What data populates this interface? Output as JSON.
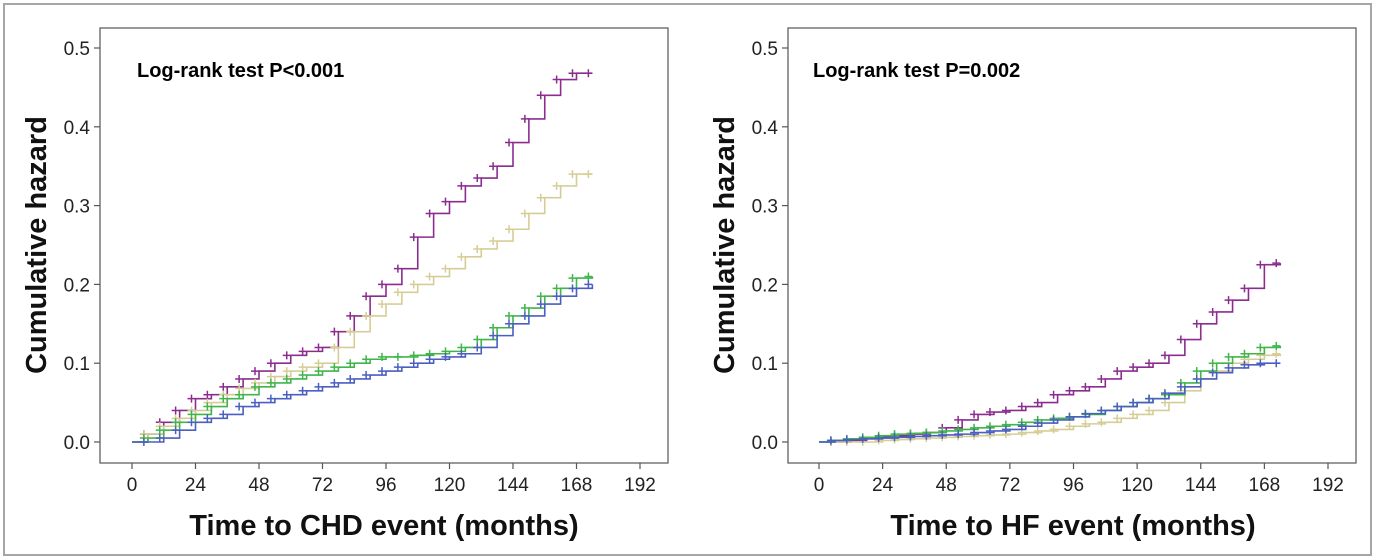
{
  "colors": {
    "purple": "#8b2d8f",
    "tan": "#d6cd96",
    "green": "#3fb54a",
    "blue": "#4a5fc1"
  },
  "chart_data": [
    {
      "type": "line",
      "xlabel": "Time to CHD event (months)",
      "ylabel": "Cumulative hazard",
      "annotation": "Log-rank test P<0.001",
      "xlim": [
        0,
        192
      ],
      "ylim": [
        0,
        0.5
      ],
      "xticks": [
        "0",
        "24",
        "48",
        "72",
        "96",
        "120",
        "144",
        "168",
        "192"
      ],
      "yticks": [
        "0.0",
        "0.1",
        "0.2",
        "0.3",
        "0.4",
        "0.5"
      ],
      "grid": false,
      "series": [
        {
          "color": "purple",
          "x": [
            0,
            6,
            12,
            18,
            24,
            30,
            36,
            42,
            48,
            54,
            60,
            66,
            72,
            78,
            84,
            90,
            96,
            102,
            108,
            114,
            120,
            126,
            132,
            138,
            144,
            150,
            156,
            162,
            168,
            174
          ],
          "y": [
            0,
            0.01,
            0.025,
            0.04,
            0.055,
            0.06,
            0.07,
            0.08,
            0.09,
            0.1,
            0.11,
            0.115,
            0.12,
            0.14,
            0.16,
            0.185,
            0.2,
            0.22,
            0.26,
            0.29,
            0.305,
            0.325,
            0.335,
            0.35,
            0.38,
            0.41,
            0.44,
            0.46,
            0.468,
            0.468
          ]
        },
        {
          "color": "tan",
          "x": [
            0,
            6,
            12,
            18,
            24,
            30,
            36,
            42,
            48,
            54,
            60,
            66,
            72,
            78,
            84,
            90,
            96,
            102,
            108,
            114,
            120,
            126,
            132,
            138,
            144,
            150,
            156,
            162,
            168,
            174
          ],
          "y": [
            0,
            0.01,
            0.02,
            0.03,
            0.04,
            0.05,
            0.06,
            0.068,
            0.075,
            0.083,
            0.09,
            0.095,
            0.1,
            0.12,
            0.14,
            0.16,
            0.175,
            0.19,
            0.2,
            0.21,
            0.22,
            0.235,
            0.245,
            0.255,
            0.27,
            0.29,
            0.31,
            0.325,
            0.34,
            0.34
          ]
        },
        {
          "color": "green",
          "x": [
            0,
            6,
            12,
            18,
            24,
            30,
            36,
            42,
            48,
            54,
            60,
            66,
            72,
            78,
            84,
            90,
            96,
            102,
            108,
            114,
            120,
            126,
            132,
            138,
            144,
            150,
            156,
            162,
            168,
            174
          ],
          "y": [
            0,
            0.005,
            0.015,
            0.025,
            0.035,
            0.045,
            0.055,
            0.06,
            0.07,
            0.075,
            0.08,
            0.085,
            0.09,
            0.095,
            0.1,
            0.105,
            0.108,
            0.108,
            0.11,
            0.112,
            0.115,
            0.12,
            0.13,
            0.145,
            0.16,
            0.17,
            0.185,
            0.195,
            0.208,
            0.21
          ]
        },
        {
          "color": "blue",
          "x": [
            0,
            6,
            12,
            18,
            24,
            30,
            36,
            42,
            48,
            54,
            60,
            66,
            72,
            78,
            84,
            90,
            96,
            102,
            108,
            114,
            120,
            126,
            132,
            138,
            144,
            150,
            156,
            162,
            168,
            174
          ],
          "y": [
            0,
            0,
            0.005,
            0.015,
            0.025,
            0.03,
            0.035,
            0.045,
            0.05,
            0.055,
            0.06,
            0.065,
            0.07,
            0.075,
            0.08,
            0.085,
            0.09,
            0.095,
            0.1,
            0.105,
            0.108,
            0.112,
            0.12,
            0.135,
            0.15,
            0.16,
            0.175,
            0.185,
            0.195,
            0.2
          ]
        }
      ]
    },
    {
      "type": "line",
      "xlabel": "Time to HF event (months)",
      "ylabel": "Cumulative hazard",
      "annotation": "Log-rank test P=0.002",
      "xlim": [
        0,
        192
      ],
      "ylim": [
        0,
        0.5
      ],
      "xticks": [
        "0",
        "24",
        "48",
        "72",
        "96",
        "120",
        "144",
        "168",
        "192"
      ],
      "yticks": [
        "0.0",
        "0.1",
        "0.2",
        "0.3",
        "0.4",
        "0.5"
      ],
      "grid": false,
      "series": [
        {
          "color": "purple",
          "x": [
            0,
            6,
            12,
            18,
            24,
            30,
            36,
            42,
            48,
            54,
            60,
            66,
            72,
            78,
            84,
            90,
            96,
            102,
            108,
            114,
            120,
            126,
            132,
            138,
            144,
            150,
            156,
            162,
            168,
            174
          ],
          "y": [
            0,
            0,
            0.002,
            0.004,
            0.006,
            0.008,
            0.01,
            0.012,
            0.018,
            0.028,
            0.035,
            0.038,
            0.04,
            0.045,
            0.05,
            0.06,
            0.065,
            0.07,
            0.08,
            0.09,
            0.095,
            0.1,
            0.11,
            0.13,
            0.15,
            0.165,
            0.18,
            0.195,
            0.225,
            0.227
          ]
        },
        {
          "color": "tan",
          "x": [
            0,
            6,
            12,
            18,
            24,
            30,
            36,
            42,
            48,
            54,
            60,
            66,
            72,
            78,
            84,
            90,
            96,
            102,
            108,
            114,
            120,
            126,
            132,
            138,
            144,
            150,
            156,
            162,
            168,
            174
          ],
          "y": [
            0,
            0,
            0,
            0,
            0.002,
            0.003,
            0.004,
            0.005,
            0.006,
            0.007,
            0.008,
            0.009,
            0.01,
            0.012,
            0.014,
            0.016,
            0.02,
            0.023,
            0.025,
            0.03,
            0.035,
            0.04,
            0.05,
            0.065,
            0.08,
            0.09,
            0.1,
            0.105,
            0.11,
            0.112
          ]
        },
        {
          "color": "green",
          "x": [
            0,
            6,
            12,
            18,
            24,
            30,
            36,
            42,
            48,
            54,
            60,
            66,
            72,
            78,
            84,
            90,
            96,
            102,
            108,
            114,
            120,
            126,
            132,
            138,
            144,
            150,
            156,
            162,
            168,
            174
          ],
          "y": [
            0,
            0.002,
            0.004,
            0.006,
            0.008,
            0.01,
            0.011,
            0.012,
            0.014,
            0.016,
            0.018,
            0.02,
            0.022,
            0.025,
            0.028,
            0.03,
            0.032,
            0.035,
            0.04,
            0.045,
            0.05,
            0.055,
            0.06,
            0.075,
            0.09,
            0.1,
            0.108,
            0.112,
            0.12,
            0.122
          ]
        },
        {
          "color": "blue",
          "x": [
            0,
            6,
            12,
            18,
            24,
            30,
            36,
            42,
            48,
            54,
            60,
            66,
            72,
            78,
            84,
            90,
            96,
            102,
            108,
            114,
            120,
            126,
            132,
            138,
            144,
            150,
            156,
            162,
            168,
            174
          ],
          "y": [
            0,
            0.002,
            0.003,
            0.004,
            0.005,
            0.006,
            0.007,
            0.008,
            0.009,
            0.01,
            0.012,
            0.014,
            0.016,
            0.02,
            0.024,
            0.028,
            0.032,
            0.036,
            0.04,
            0.045,
            0.05,
            0.055,
            0.062,
            0.07,
            0.08,
            0.088,
            0.094,
            0.098,
            0.1,
            0.1
          ]
        }
      ]
    }
  ]
}
